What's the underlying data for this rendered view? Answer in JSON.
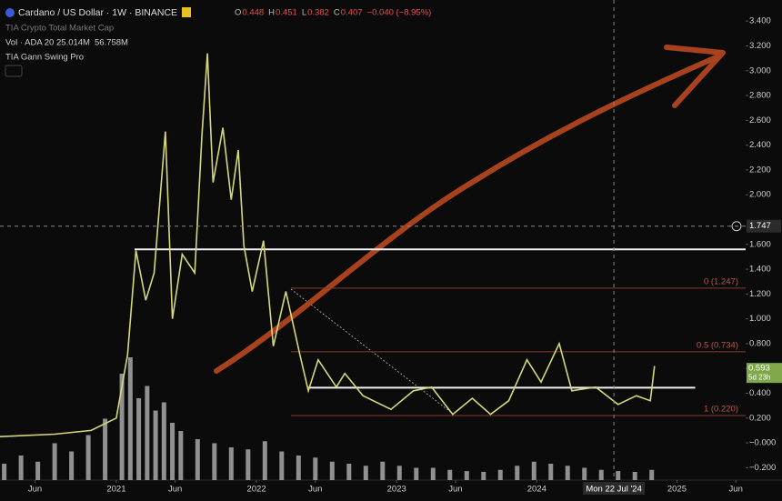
{
  "header": {
    "title": "Cardano / US Dollar · 1W · BINANCE",
    "ohlc": [
      "O",
      "0.448",
      "H",
      "0.451",
      "L",
      "0.382",
      "C",
      "0.407",
      "−0.040 (−8.95%)"
    ],
    "indicator_1": "TIA Crypto Total Market Cap",
    "volume_label": "Vol · ADA 20",
    "volume_value": "25.014M",
    "volume_ma": "56.758M",
    "indicator_2": "TIA Gann Swing Pro"
  },
  "chart_data": {
    "type": "line",
    "x": [
      2020.17,
      2020.56,
      2020.82,
      2021.0,
      2021.08,
      2021.14,
      2021.21,
      2021.27,
      2021.35,
      2021.4,
      2021.47,
      2021.56,
      2021.61,
      2021.65,
      2021.69,
      2021.76,
      2021.82,
      2021.87,
      2021.91,
      2021.97,
      2022.05,
      2022.12,
      2022.21,
      2022.31,
      2022.37,
      2022.44,
      2022.57,
      2022.63,
      2022.76,
      2022.96,
      2023.12,
      2023.25,
      2023.4,
      2023.54,
      2023.67,
      2023.8,
      2023.93,
      2024.03,
      2024.16,
      2024.25,
      2024.42,
      2024.58,
      2024.71,
      2024.81,
      2024.84
    ],
    "values": [
      0.05,
      0.07,
      0.1,
      0.2,
      0.71,
      1.55,
      1.15,
      1.37,
      2.51,
      1.0,
      1.52,
      1.37,
      2.47,
      3.14,
      2.1,
      2.54,
      1.96,
      2.36,
      1.59,
      1.22,
      1.63,
      0.78,
      1.22,
      0.71,
      0.42,
      0.67,
      0.45,
      0.56,
      0.38,
      0.27,
      0.42,
      0.45,
      0.23,
      0.36,
      0.23,
      0.34,
      0.67,
      0.49,
      0.8,
      0.42,
      0.45,
      0.31,
      0.38,
      0.34,
      0.62
    ],
    "color": "#d6d77c",
    "volume": {
      "x": [
        2020.2,
        2020.32,
        2020.44,
        2020.56,
        2020.68,
        2020.8,
        2020.92,
        2021.04,
        2021.1,
        2021.16,
        2021.22,
        2021.28,
        2021.34,
        2021.4,
        2021.46,
        2021.58,
        2021.7,
        2021.82,
        2021.94,
        2022.06,
        2022.18,
        2022.3,
        2022.42,
        2022.54,
        2022.66,
        2022.78,
        2022.9,
        2023.02,
        2023.14,
        2023.26,
        2023.38,
        2023.5,
        2023.62,
        2023.74,
        2023.86,
        2023.98,
        2024.1,
        2024.22,
        2024.34,
        2024.46,
        2024.58,
        2024.7,
        2024.82
      ],
      "values": [
        40,
        60,
        45,
        90,
        70,
        110,
        150,
        260,
        300,
        200,
        230,
        170,
        190,
        140,
        120,
        100,
        90,
        80,
        75,
        95,
        70,
        60,
        55,
        45,
        40,
        35,
        45,
        35,
        30,
        30,
        25,
        22,
        20,
        25,
        35,
        45,
        40,
        35,
        30,
        25,
        22,
        20,
        25
      ],
      "color": "#bdbdbd"
    },
    "xlim": [
      2020.17,
      2025.49
    ],
    "ylim": [
      -0.3,
      3.57
    ],
    "xticks": [
      {
        "value": 2020.42,
        "label": "Jun"
      },
      {
        "value": 2021,
        "label": "2021"
      },
      {
        "value": 2021.42,
        "label": "Jun"
      },
      {
        "value": 2022,
        "label": "2022"
      },
      {
        "value": 2022.42,
        "label": "Jun"
      },
      {
        "value": 2023,
        "label": "2023"
      },
      {
        "value": 2023.42,
        "label": "Jun"
      },
      {
        "value": 2024,
        "label": "2024"
      },
      {
        "value": 2025,
        "label": "2025"
      },
      {
        "value": 2025.42,
        "label": "Jun"
      }
    ],
    "yticks": [
      {
        "value": 3.4,
        "label": "3.400"
      },
      {
        "value": 3.2,
        "label": "3.200"
      },
      {
        "value": 3.0,
        "label": "3.000"
      },
      {
        "value": 2.8,
        "label": "2.800"
      },
      {
        "value": 2.6,
        "label": "2.600"
      },
      {
        "value": 2.4,
        "label": "2.400"
      },
      {
        "value": 2.2,
        "label": "2.200"
      },
      {
        "value": 2.0,
        "label": "2.000"
      },
      {
        "value": 1.6,
        "label": "1.600"
      },
      {
        "value": 1.4,
        "label": "1.400"
      },
      {
        "value": 1.2,
        "label": "1.200"
      },
      {
        "value": 1.0,
        "label": "1.000"
      },
      {
        "value": 0.8,
        "label": "0.800"
      },
      {
        "value": 0.6,
        "label": "0.600"
      },
      {
        "value": 0.4,
        "label": "0.400"
      },
      {
        "value": 0.2,
        "label": "0.200"
      },
      {
        "value": 0,
        "label": "−0.000"
      },
      {
        "value": -0.2,
        "label": "−0.200"
      }
    ],
    "fib": [
      {
        "value": 1.247,
        "label": "0 (1.247)"
      },
      {
        "value": 0.734,
        "label": "0.5 (0.734)"
      },
      {
        "value": 0.22,
        "label": "1 (0.220)"
      }
    ],
    "horizontal_lines": [
      {
        "value": 1.56,
        "x": [
          2021.13,
          2025.49
        ]
      },
      {
        "value": 0.445,
        "x": [
          2022.37,
          2025.13
        ]
      }
    ],
    "crosshair": {
      "value": 1.747,
      "label": "1.747",
      "x": 2024.55,
      "x_label": "Mon 22 Jul '24"
    },
    "last_price": {
      "value": 0.593,
      "label": "0.593",
      "countdown": "5d 23h"
    }
  }
}
